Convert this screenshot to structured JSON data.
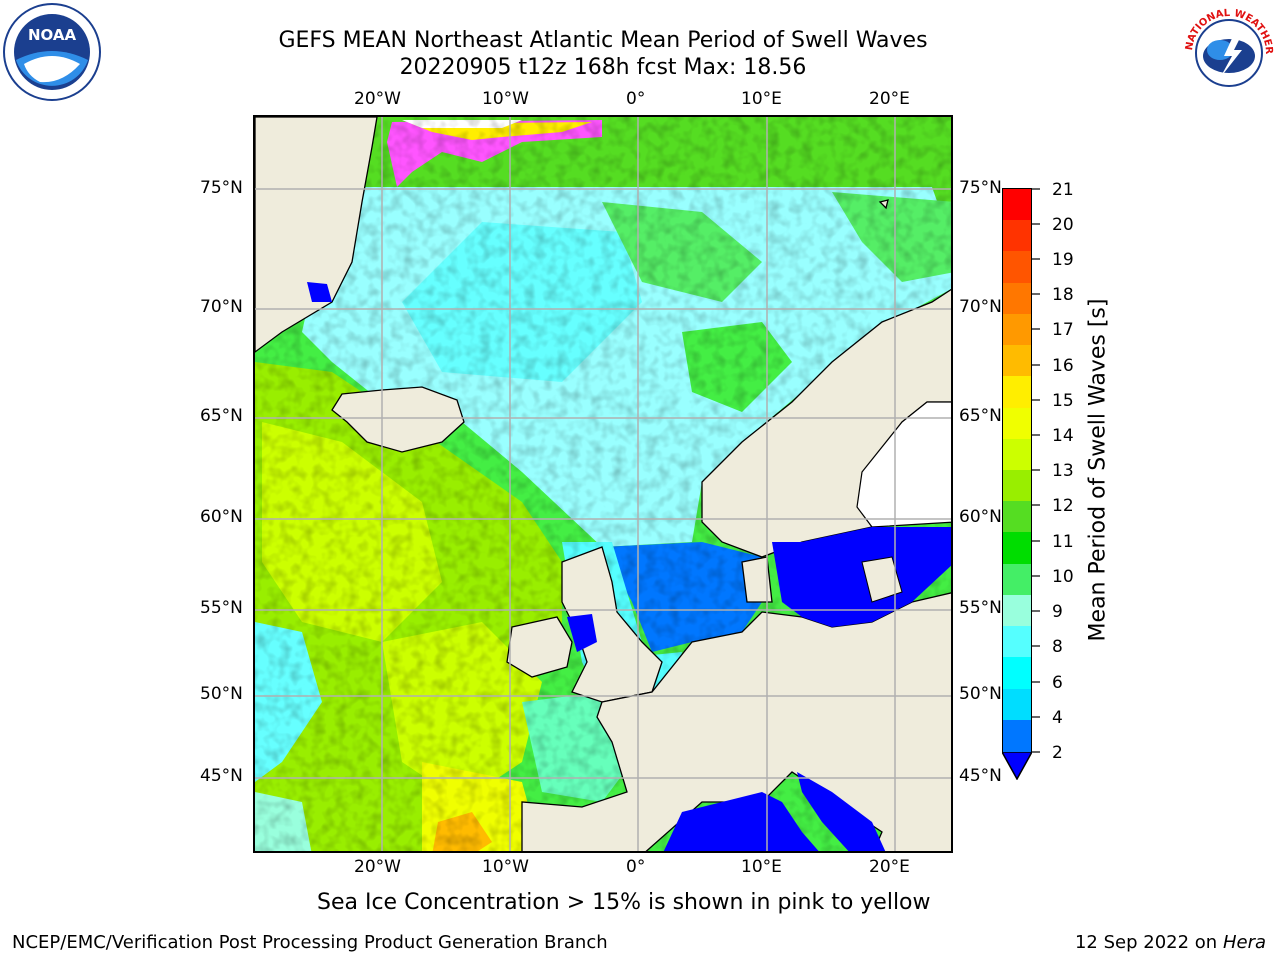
{
  "header": {
    "title_line1": "GEFS MEAN Northeast Atlantic Mean Period of Swell Waves",
    "title_line2": "20220905 t12z 168h fcst   Max: 18.56"
  },
  "logos": {
    "left": "noaa-logo",
    "right": "nws-logo",
    "left_text": "NOAA",
    "right_text": "NATIONAL WEATHER SERVICE"
  },
  "map": {
    "lon_labels": [
      "20°W",
      "10°W",
      "0°",
      "10°E",
      "20°E"
    ],
    "lat_labels": [
      "75°N",
      "70°N",
      "65°N",
      "60°N",
      "55°N",
      "50°N",
      "45°N"
    ]
  },
  "colorbar": {
    "label": "Mean Period of Swell Waves [s]",
    "ticks": [
      "21",
      "20",
      "19",
      "18",
      "17",
      "16",
      "15",
      "14",
      "13",
      "12",
      "11",
      "10",
      "9",
      "8",
      "6",
      "4",
      "2"
    ],
    "colors": [
      "#ff0000",
      "#ff3300",
      "#ff5500",
      "#ff7700",
      "#ff9900",
      "#ffbb00",
      "#ffee00",
      "#f0ff00",
      "#ccff00",
      "#99ee00",
      "#55dd22",
      "#00dd00",
      "#44ee66",
      "#99ffdd",
      "#55ffff",
      "#00ffff",
      "#00ddff",
      "#0077ff"
    ],
    "extend_color": "#0000ff"
  },
  "caption": "Sea Ice Concentration > 15% is shown in pink to yellow",
  "footer": {
    "left": "NCEP/EMC/Verification Post Processing Product Generation Branch",
    "date": "12 Sep 2022 on",
    "system": "Hera"
  }
}
